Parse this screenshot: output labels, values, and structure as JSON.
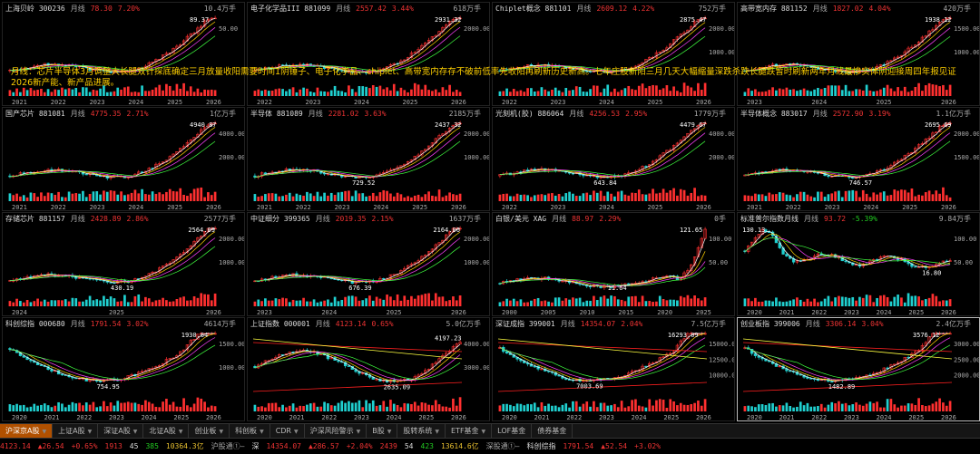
{
  "panels": [
    {
      "name": "上海贝岭 300236",
      "period": "月线",
      "price": "78.30",
      "change": "7.20%",
      "peak": "89.37",
      "vol": "10.4万手",
      "trend": "up",
      "years": [
        "2021",
        "2022",
        "2023",
        "2024",
        "2025",
        "2026"
      ],
      "yticks": [
        "50.00"
      ]
    },
    {
      "name": "电子化学品III 881099",
      "period": "月线",
      "price": "2557.42",
      "change": "3.44%",
      "peak": "2931.32",
      "vol": "618万手",
      "trend": "up",
      "years": [
        "2022",
        "2023",
        "2024",
        "2025",
        "2026"
      ],
      "yticks": [
        "2000.00"
      ]
    },
    {
      "name": "Chiplet概念 881101",
      "period": "月线",
      "price": "2609.12",
      "change": "4.22%",
      "peak": "2875.47",
      "vol": "752万手",
      "trend": "up",
      "years": [
        "2022",
        "2023",
        "2024",
        "2025",
        "2026"
      ],
      "yticks": [
        "2000.00",
        "1000.00"
      ]
    },
    {
      "name": "高带宽内存 881152",
      "period": "月线",
      "price": "1827.02",
      "change": "4.04%",
      "peak": "1938.12",
      "vol": "420万手",
      "trend": "up",
      "years": [
        "2023",
        "2024",
        "2025",
        "2026"
      ],
      "yticks": [
        "1500.00",
        "1000.00"
      ]
    },
    {
      "name": "国产芯片 881081",
      "period": "月线",
      "price": "4775.35",
      "change": "2.71%",
      "peak": "4940.87",
      "vol": "1亿万手",
      "trend": "up",
      "years": [
        "2021",
        "2022",
        "2023",
        "2024",
        "2025",
        "2026"
      ],
      "yticks": [
        "4000.00",
        "2000.00"
      ]
    },
    {
      "name": "半导体 881089",
      "period": "月线",
      "price": "2281.02",
      "change": "3.63%",
      "peak": "2437.32",
      "low": "729.52",
      "vol": "2185万手",
      "trend": "up",
      "years": [
        "2021",
        "2022",
        "2023",
        "2024",
        "2025",
        "2026"
      ],
      "yticks": [
        "2000.00",
        "1000.00"
      ]
    },
    {
      "name": "光刻机(胶) 886064",
      "period": "月线",
      "price": "4256.53",
      "change": "2.95%",
      "peak": "4479.67",
      "low": "643.84",
      "vol": "1779万手",
      "trend": "up",
      "years": [
        "2022",
        "2023",
        "2024",
        "2025",
        "2026"
      ],
      "yticks": [
        "4000.00",
        "2000.00"
      ]
    },
    {
      "name": "半导体概念 883017",
      "period": "月线",
      "price": "2572.90",
      "change": "3.19%",
      "peak": "2695.69",
      "low": "746.57",
      "vol": "1.1亿万手",
      "trend": "up",
      "years": [
        "2021",
        "2022",
        "2023",
        "2024",
        "2025",
        "2026"
      ],
      "yticks": [
        "2000.00",
        "1500.00"
      ]
    },
    {
      "name": "存储芯片 881157",
      "period": "月线",
      "price": "2428.89",
      "change": "2.86%",
      "peak": "2564.09",
      "low": "430.19",
      "vol": "2577万手",
      "trend": "up",
      "years": [
        "2024",
        "2025",
        "2026"
      ],
      "yticks": [
        "2000.00",
        "1000.00"
      ]
    },
    {
      "name": "中证细分 399365",
      "period": "月线",
      "price": "2019.35",
      "change": "2.15%",
      "peak": "2164.06",
      "low": "676.39",
      "vol": "1637万手",
      "trend": "up",
      "years": [
        "2023",
        "2024",
        "2025",
        "2026"
      ],
      "yticks": [
        "2000.00",
        "1000.00"
      ]
    },
    {
      "name": "白银/美元 XAG",
      "period": "月线",
      "price": "88.97",
      "change": "2.29%",
      "peak": "121.65",
      "low": "11.64",
      "vol": "0手",
      "trend": "spike",
      "years": [
        "2000",
        "2005",
        "2010",
        "2015",
        "2020",
        "2025"
      ],
      "yticks": [
        "100.00",
        "50.00"
      ]
    },
    {
      "name": "标准普尔指数月线",
      "period": "月线",
      "price": "93.72",
      "change": "-5.39%",
      "peak": "130.13",
      "low": "16.80",
      "vol": "9.84万手",
      "trend": "range",
      "years": [
        "2020",
        "2021",
        "2022",
        "2023",
        "2024",
        "2025",
        "2026"
      ],
      "yticks": [
        "100.00",
        "50.00"
      ]
    },
    {
      "name": "科创综指 000680",
      "period": "月线",
      "price": "1791.54",
      "change": "3.02%",
      "peak": "1930.64",
      "low": "754.95",
      "vol": "4614万手",
      "trend": "valley",
      "years": [
        "2020",
        "2021",
        "2022",
        "2023",
        "2024",
        "2025",
        "2026"
      ],
      "yticks": [
        "1500.00",
        "1000.00"
      ]
    },
    {
      "name": "上证指数 000001",
      "period": "月线",
      "price": "4123.14",
      "change": "0.65%",
      "peak": "4197.23",
      "low": "2635.09",
      "vol": "5.0亿万手",
      "trend": "channel",
      "years": [
        "2020",
        "2021",
        "2022",
        "2023",
        "2024",
        "2025",
        "2026"
      ],
      "yticks": [
        "4000.00",
        "3000.00"
      ]
    },
    {
      "name": "深证成指 399001",
      "period": "月线",
      "price": "14354.07",
      "change": "2.04%",
      "peak": "16293.09",
      "low": "7003.69",
      "vol": "7.5亿万手",
      "trend": "valley",
      "years": [
        "2020",
        "2021",
        "2022",
        "2023",
        "2024",
        "2025",
        "2026"
      ],
      "yticks": [
        "15000.00",
        "12500.00",
        "10000.00"
      ]
    },
    {
      "name": "创业板指 399006",
      "period": "月线",
      "price": "3306.14",
      "change": "3.04%",
      "peak": "3576.12",
      "low": "1482.89",
      "vol": "2.4亿万手",
      "trend": "valley",
      "years": [
        "2020",
        "2021",
        "2022",
        "2023",
        "2024",
        "2025",
        "2026"
      ],
      "yticks": [
        "3000.00",
        "2500.00",
        "2000.00"
      ]
    }
  ],
  "overlay_text": "月线：芯片半导体3月调整大长腿双针探底确定三月放量收阳需要时间1阴锤子、电子化学品、chiplet、高带宽内存存不破前低率先收阳再刷新历史新高。七年庄股新阳三月几天大幅缩量深跌杀跌长腿跌暂时刷新两年月线最惨实体阴迎接周四年报见证2026新产能、新产品进展。",
  "tabs": [
    {
      "label": "沪深京A股",
      "active": true,
      "arrow": true
    },
    {
      "label": "上证A股",
      "arrow": true
    },
    {
      "label": "深证A股",
      "arrow": true
    },
    {
      "label": "北证A股",
      "arrow": true
    },
    {
      "label": "创业板",
      "arrow": true
    },
    {
      "label": "科创板",
      "arrow": true
    },
    {
      "label": "CDR",
      "arrow": true
    },
    {
      "label": "沪深风险警示",
      "arrow": true
    },
    {
      "label": "B股",
      "arrow": true
    },
    {
      "label": "股转系统",
      "arrow": true
    },
    {
      "label": "ETF基金",
      "arrow": true
    },
    {
      "label": "LOF基金"
    },
    {
      "label": "债券基金"
    }
  ],
  "status": [
    {
      "t": "4123.14",
      "c": "up"
    },
    {
      "t": "▲26.54",
      "c": "up"
    },
    {
      "t": "+0.65%",
      "c": "up"
    },
    {
      "t": "1913",
      "c": "up"
    },
    {
      "t": "45",
      "c": "w"
    },
    {
      "t": "385",
      "c": "dn"
    },
    {
      "t": "10364.3亿",
      "c": "y"
    },
    {
      "t": "沪股通①—",
      "c": "g"
    },
    {
      "t": "深",
      "c": "w"
    },
    {
      "t": "14354.07",
      "c": "up"
    },
    {
      "t": "▲286.57",
      "c": "up"
    },
    {
      "t": "+2.04%",
      "c": "up"
    },
    {
      "t": "2439",
      "c": "up"
    },
    {
      "t": "54",
      "c": "w"
    },
    {
      "t": "423",
      "c": "dn"
    },
    {
      "t": "13614.6亿",
      "c": "y"
    },
    {
      "t": "深股通①—",
      "c": "g"
    },
    {
      "t": "科创综指",
      "c": "w"
    },
    {
      "t": "1791.54",
      "c": "up"
    },
    {
      "t": "▲52.54",
      "c": "up"
    },
    {
      "t": "+3.02%",
      "c": "up"
    }
  ]
}
